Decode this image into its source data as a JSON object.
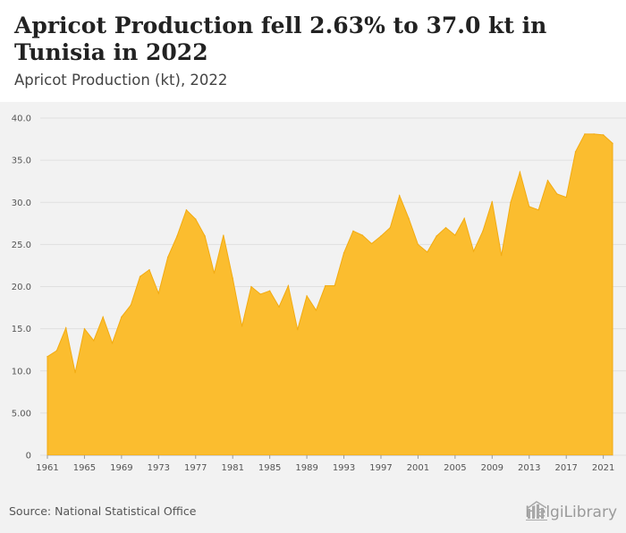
{
  "header": {
    "title": "Apricot Production fell 2.63% to 37.0 kt in Tunisia in 2022",
    "subtitle": "Apricot Production (kt), 2022"
  },
  "footer": {
    "source": "Source: National Statistical Office",
    "logo_text": "HelgiLibrary"
  },
  "colors": {
    "area_fill": "#fbbd2f",
    "area_stroke": "#f2ab12",
    "plot_bg": "#f2f2f2",
    "grid": "#e0e0e0"
  },
  "chart_data": {
    "type": "area",
    "x": [
      1961,
      1962,
      1963,
      1964,
      1965,
      1966,
      1967,
      1968,
      1969,
      1970,
      1971,
      1972,
      1973,
      1974,
      1975,
      1976,
      1977,
      1978,
      1979,
      1980,
      1981,
      1982,
      1983,
      1984,
      1985,
      1986,
      1987,
      1988,
      1989,
      1990,
      1991,
      1992,
      1993,
      1994,
      1995,
      1996,
      1997,
      1998,
      1999,
      2000,
      2001,
      2002,
      2003,
      2004,
      2005,
      2006,
      2007,
      2008,
      2009,
      2010,
      2011,
      2012,
      2013,
      2014,
      2015,
      2016,
      2017,
      2018,
      2019,
      2020,
      2021,
      2022
    ],
    "values": [
      11.7,
      12.4,
      15.1,
      9.8,
      15.0,
      13.6,
      16.4,
      13.3,
      16.4,
      17.8,
      21.2,
      22.0,
      19.2,
      23.5,
      26.0,
      29.1,
      28.0,
      26.0,
      21.6,
      26.1,
      21.0,
      15.3,
      20.0,
      19.1,
      19.5,
      17.6,
      20.1,
      14.9,
      18.9,
      17.2,
      20.1,
      20.1,
      24.0,
      26.6,
      26.1,
      25.1,
      26.0,
      27.0,
      30.8,
      28.1,
      25.0,
      24.1,
      26.0,
      27.0,
      26.1,
      28.1,
      24.2,
      26.6,
      30.1,
      23.7,
      30.0,
      33.6,
      29.5,
      29.1,
      32.6,
      31.0,
      30.6,
      36.0,
      38.1,
      38.1,
      38.0,
      37.0
    ],
    "ylim": [
      0,
      40
    ],
    "yticks": [
      0,
      5,
      10,
      15,
      20,
      25,
      30,
      35,
      40
    ],
    "ytick_labels": [
      "0",
      "5.00",
      "10.0",
      "15.0",
      "20.0",
      "25.0",
      "30.0",
      "35.0",
      "40.0"
    ],
    "xticks": [
      1961,
      1965,
      1969,
      1973,
      1977,
      1981,
      1985,
      1989,
      1993,
      1997,
      2001,
      2005,
      2009,
      2013,
      2017,
      2021
    ],
    "xtick_labels": [
      "1961",
      "1965",
      "1969",
      "1973",
      "1977",
      "1981",
      "1985",
      "1989",
      "1993",
      "1997",
      "2001",
      "2005",
      "2009",
      "2013",
      "2017",
      "2021"
    ],
    "grid": true,
    "legend": "none"
  }
}
